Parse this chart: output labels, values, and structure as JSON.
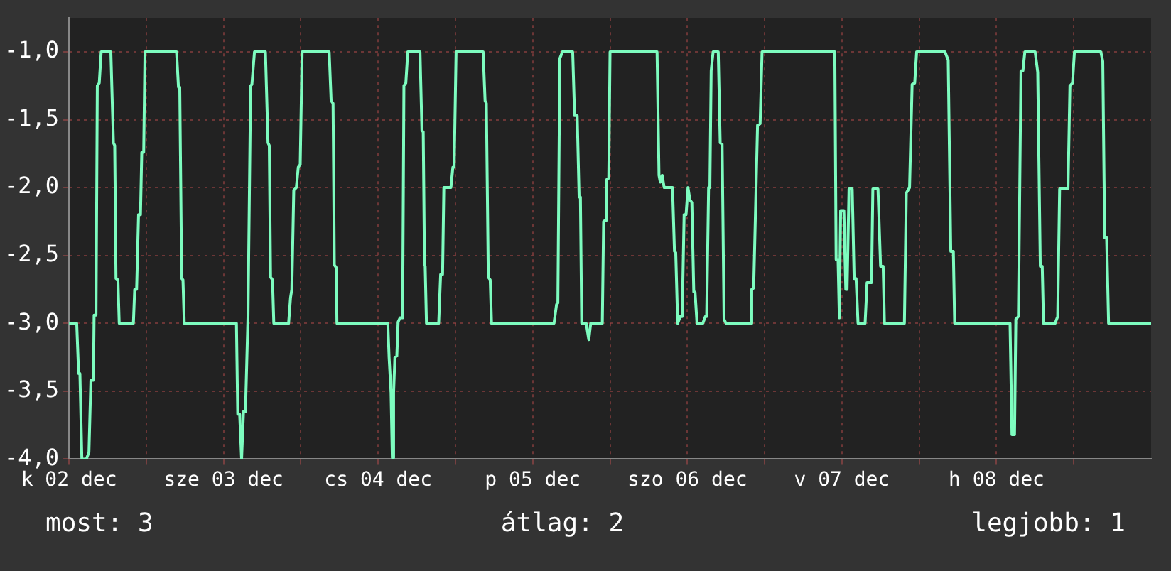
{
  "chart_data": {
    "type": "line",
    "x": [
      "--12-02T12:00",
      "--12-02T13:12",
      "--12-02T13:30",
      "--12-02T13:42",
      "--12-02T14:00",
      "--12-02T14:42",
      "--12-02T15:06",
      "--12-02T15:24",
      "--12-02T15:48",
      "--12-02T15:54",
      "--12-02T16:12",
      "--12-02T16:24",
      "--12-02T16:42",
      "--12-02T17:00",
      "--12-02T18:30",
      "--12-02T18:54",
      "--12-02T19:06",
      "--12-02T19:18",
      "--12-02T19:36",
      "--12-02T19:48",
      "--12-02T22:00",
      "--12-02T22:12",
      "--12-02T22:30",
      "--12-02T22:48",
      "--12-02T23:06",
      "--12-02T23:18",
      "--12-02T23:36",
      "--12-02T23:48",
      "--12-03T04:42",
      "--12-03T05:00",
      "--12-03T05:12",
      "--12-03T05:30",
      "--12-03T05:42",
      "--12-03T05:54",
      "--12-03T14:00",
      "--12-03T14:12",
      "--12-03T14:30",
      "--12-03T14:48",
      "--12-03T15:06",
      "--12-03T15:24",
      "--12-03T15:48",
      "--12-03T15:54",
      "--12-03T16:12",
      "--12-03T16:24",
      "--12-03T16:48",
      "--12-03T18:30",
      "--12-03T18:54",
      "--12-03T19:06",
      "--12-03T19:18",
      "--12-03T19:36",
      "--12-03T19:48",
      "--12-03T22:06",
      "--12-03T22:24",
      "--12-03T22:36",
      "--12-03T22:54",
      "--12-03T23:18",
      "--12-03T23:36",
      "--12-03T23:54",
      "--12-04T00:12",
      "--12-04T04:24",
      "--12-04T04:42",
      "--12-04T05:00",
      "--12-04T05:12",
      "--12-04T05:30",
      "--12-04T05:36",
      "--12-04T13:30",
      "--12-04T13:42",
      "--12-04T14:00",
      "--12-04T14:12",
      "--12-04T14:24",
      "--12-04T14:36",
      "--12-04T14:54",
      "--12-04T15:06",
      "--12-04T15:24",
      "--12-04T15:48",
      "--12-04T16:00",
      "--12-04T16:18",
      "--12-04T16:36",
      "--12-04T18:30",
      "--12-04T18:48",
      "--12-04T19:00",
      "--12-04T19:12",
      "--12-04T19:18",
      "--12-04T19:30",
      "--12-04T21:24",
      "--12-04T21:42",
      "--12-04T22:00",
      "--12-04T22:12",
      "--12-04T23:18",
      "--12-04T23:36",
      "--12-04T23:48",
      "--12-05T00:06",
      "--12-05T04:18",
      "--12-05T04:36",
      "--12-05T04:48",
      "--12-05T05:06",
      "--12-05T05:24",
      "--12-05T05:36",
      "--12-05T15:18",
      "--12-05T15:42",
      "--12-05T15:54",
      "--12-05T16:12",
      "--12-05T16:36",
      "--12-05T18:12",
      "--12-05T18:30",
      "--12-05T18:54",
      "--12-05T19:12",
      "--12-05T19:24",
      "--12-05T19:36",
      "--12-05T20:18",
      "--12-05T20:42",
      "--12-05T21:00",
      "--12-05T22:48",
      "--12-05T23:00",
      "--12-05T23:18",
      "--12-05T23:30",
      "--12-05T23:48",
      "--12-06T00:00",
      "--12-06T07:18",
      "--12-06T07:36",
      "--12-06T07:48",
      "--12-06T08:06",
      "--12-06T08:24",
      "--12-06T09:42",
      "--12-06T10:00",
      "--12-06T10:12",
      "--12-06T10:30",
      "--12-06T10:54",
      "--12-06T11:12",
      "--12-06T11:30",
      "--12-06T11:48",
      "--12-06T12:06",
      "--12-06T12:24",
      "--12-06T12:42",
      "--12-06T13:00",
      "--12-06T13:12",
      "--12-06T13:30",
      "--12-06T14:24",
      "--12-06T14:48",
      "--12-06T15:00",
      "--12-06T15:18",
      "--12-06T15:30",
      "--12-06T15:42",
      "--12-06T16:00",
      "--12-06T16:48",
      "--12-06T17:06",
      "--12-06T17:24",
      "--12-06T17:42",
      "--12-06T18:00",
      "--12-06T21:48",
      "--12-06T22:00",
      "--12-06T22:18",
      "--12-06T22:54",
      "--12-06T23:18",
      "--12-06T23:36",
      "--12-07T10:54",
      "--12-07T11:06",
      "--12-07T11:24",
      "--12-07T11:36",
      "--12-07T11:48",
      "--12-07T12:18",
      "--12-07T12:36",
      "--12-07T12:48",
      "--12-07T13:06",
      "--12-07T13:36",
      "--12-07T13:54",
      "--12-07T14:12",
      "--12-07T14:30",
      "--12-07T15:36",
      "--12-07T15:54",
      "--12-07T16:36",
      "--12-07T16:48",
      "--12-07T17:36",
      "--12-07T18:00",
      "--12-07T18:24",
      "--12-07T18:36",
      "--12-07T21:42",
      "--12-07T22:00",
      "--12-07T22:30",
      "--12-07T22:54",
      "--12-07T23:18",
      "--12-07T23:36",
      "--12-08T04:00",
      "--12-08T04:30",
      "--12-08T04:54",
      "--12-08T05:18",
      "--12-08T05:30",
      "--12-08T14:06",
      "--12-08T14:24",
      "--12-08T14:48",
      "--12-08T15:00",
      "--12-08T15:24",
      "--12-08T15:48",
      "--12-08T16:06",
      "--12-08T16:24",
      "--12-08T18:00",
      "--12-08T18:24",
      "--12-08T18:48",
      "--12-08T19:06",
      "--12-08T19:18",
      "--12-08T21:06",
      "--12-08T21:30",
      "--12-08T21:48",
      "--12-08T23:06",
      "--12-08T23:24",
      "--12-08T23:48",
      "--12-09T00:06",
      "--12-09T04:12",
      "--12-09T04:30",
      "--12-09T04:48",
      "--12-09T05:06",
      "--12-09T05:24",
      "--12-09T12:00"
    ],
    "series": [
      {
        "color": "#7dfcbf",
        "values": [
          -3.0,
          -3.0,
          -3.37,
          -3.37,
          -4.0,
          -4.0,
          -3.95,
          -3.42,
          -3.42,
          -2.94,
          -2.94,
          -1.25,
          -1.23,
          -1.0,
          -1.0,
          -1.67,
          -1.69,
          -2.67,
          -2.68,
          -3.0,
          -3.0,
          -2.75,
          -2.75,
          -2.2,
          -2.2,
          -1.74,
          -1.74,
          -1.0,
          -1.0,
          -1.26,
          -1.26,
          -2.67,
          -2.68,
          -3.0,
          -3.0,
          -3.67,
          -3.67,
          -4.0,
          -3.65,
          -3.65,
          -2.94,
          -2.94,
          -1.25,
          -1.24,
          -1.0,
          -1.0,
          -1.67,
          -1.69,
          -2.66,
          -2.68,
          -3.0,
          -3.0,
          -2.81,
          -2.75,
          -2.02,
          -2.0,
          -1.85,
          -1.83,
          -1.0,
          -1.0,
          -1.36,
          -1.38,
          -2.57,
          -2.59,
          -3.0,
          -3.0,
          -3.25,
          -3.51,
          -3.99,
          -3.51,
          -3.25,
          -3.24,
          -2.99,
          -2.96,
          -2.96,
          -1.25,
          -1.23,
          -1.0,
          -1.0,
          -1.58,
          -1.59,
          -2.57,
          -2.58,
          -3.0,
          -3.0,
          -2.64,
          -2.64,
          -2.0,
          -2.0,
          -1.85,
          -1.85,
          -1.0,
          -1.0,
          -1.36,
          -1.38,
          -2.66,
          -2.68,
          -3.0,
          -3.0,
          -2.86,
          -2.85,
          -1.05,
          -1.0,
          -1.0,
          -1.47,
          -1.47,
          -2.07,
          -2.07,
          -3.0,
          -3.0,
          -3.12,
          -3.0,
          -3.0,
          -2.25,
          -2.24,
          -1.94,
          -1.93,
          -1.0,
          -1.0,
          -1.91,
          -1.96,
          -1.91,
          -2.0,
          -2.0,
          -2.47,
          -2.48,
          -3.0,
          -2.95,
          -2.95,
          -2.2,
          -2.2,
          -2.0,
          -2.09,
          -2.11,
          -2.77,
          -2.77,
          -3.0,
          -3.0,
          -2.95,
          -2.95,
          -2.0,
          -2.0,
          -1.14,
          -1.0,
          -1.0,
          -1.67,
          -1.68,
          -2.97,
          -3.0,
          -3.0,
          -2.75,
          -2.74,
          -1.54,
          -1.53,
          -1.0,
          -1.0,
          -2.53,
          -2.53,
          -2.96,
          -2.17,
          -2.17,
          -2.75,
          -2.75,
          -2.01,
          -2.01,
          -2.67,
          -2.67,
          -3.0,
          -3.0,
          -2.7,
          -2.7,
          -2.01,
          -2.01,
          -2.58,
          -2.58,
          -3.0,
          -3.0,
          -2.04,
          -2.0,
          -1.24,
          -1.23,
          -1.0,
          -1.0,
          -1.06,
          -2.47,
          -2.47,
          -3.0,
          -3.0,
          -3.82,
          -3.82,
          -2.97,
          -2.95,
          -1.14,
          -1.14,
          -1.0,
          -1.0,
          -1.15,
          -2.58,
          -2.58,
          -3.0,
          -3.0,
          -2.95,
          -2.01,
          -2.01,
          -1.25,
          -1.23,
          -1.0,
          -1.0,
          -1.07,
          -2.37,
          -2.37,
          -3.0,
          -3.0
        ]
      }
    ],
    "xlim": [
      "--12-02T12:00",
      "--12-09T12:00"
    ],
    "xticks": [
      {
        "value": "--12-02T12:00",
        "label": "k 02 dec"
      },
      {
        "value": "--12-03T00:00",
        "label": null
      },
      {
        "value": "--12-03T12:00",
        "label": "sze 03 dec"
      },
      {
        "value": "--12-04T00:00",
        "label": null
      },
      {
        "value": "--12-04T12:00",
        "label": "cs 04 dec"
      },
      {
        "value": "--12-05T00:00",
        "label": null
      },
      {
        "value": "--12-05T12:00",
        "label": "p 05 dec"
      },
      {
        "value": "--12-06T00:00",
        "label": null
      },
      {
        "value": "--12-06T12:00",
        "label": "szo 06 dec"
      },
      {
        "value": "--12-07T00:00",
        "label": null
      },
      {
        "value": "--12-07T12:00",
        "label": "v 07 dec"
      },
      {
        "value": "--12-08T00:00",
        "label": null
      },
      {
        "value": "--12-08T12:00",
        "label": "h 08 dec"
      },
      {
        "value": "--12-09T00:00",
        "label": null
      }
    ],
    "ylim": [
      -4,
      -0.75
    ],
    "yticks": [
      {
        "value": -4,
        "label": "-4,0"
      },
      {
        "value": -3.5,
        "label": "-3,5"
      },
      {
        "value": -3,
        "label": "-3,0"
      },
      {
        "value": -2.5,
        "label": "-2,5"
      },
      {
        "value": -2,
        "label": "-2,0"
      },
      {
        "value": -1.5,
        "label": "-1,5"
      },
      {
        "value": -1,
        "label": "-1,0"
      }
    ],
    "grid": true,
    "legend": false,
    "marker": "none",
    "line_style": "solid",
    "annotations": [
      "most: 3",
      "átlag: 2",
      "legjobb: 1"
    ]
  }
}
